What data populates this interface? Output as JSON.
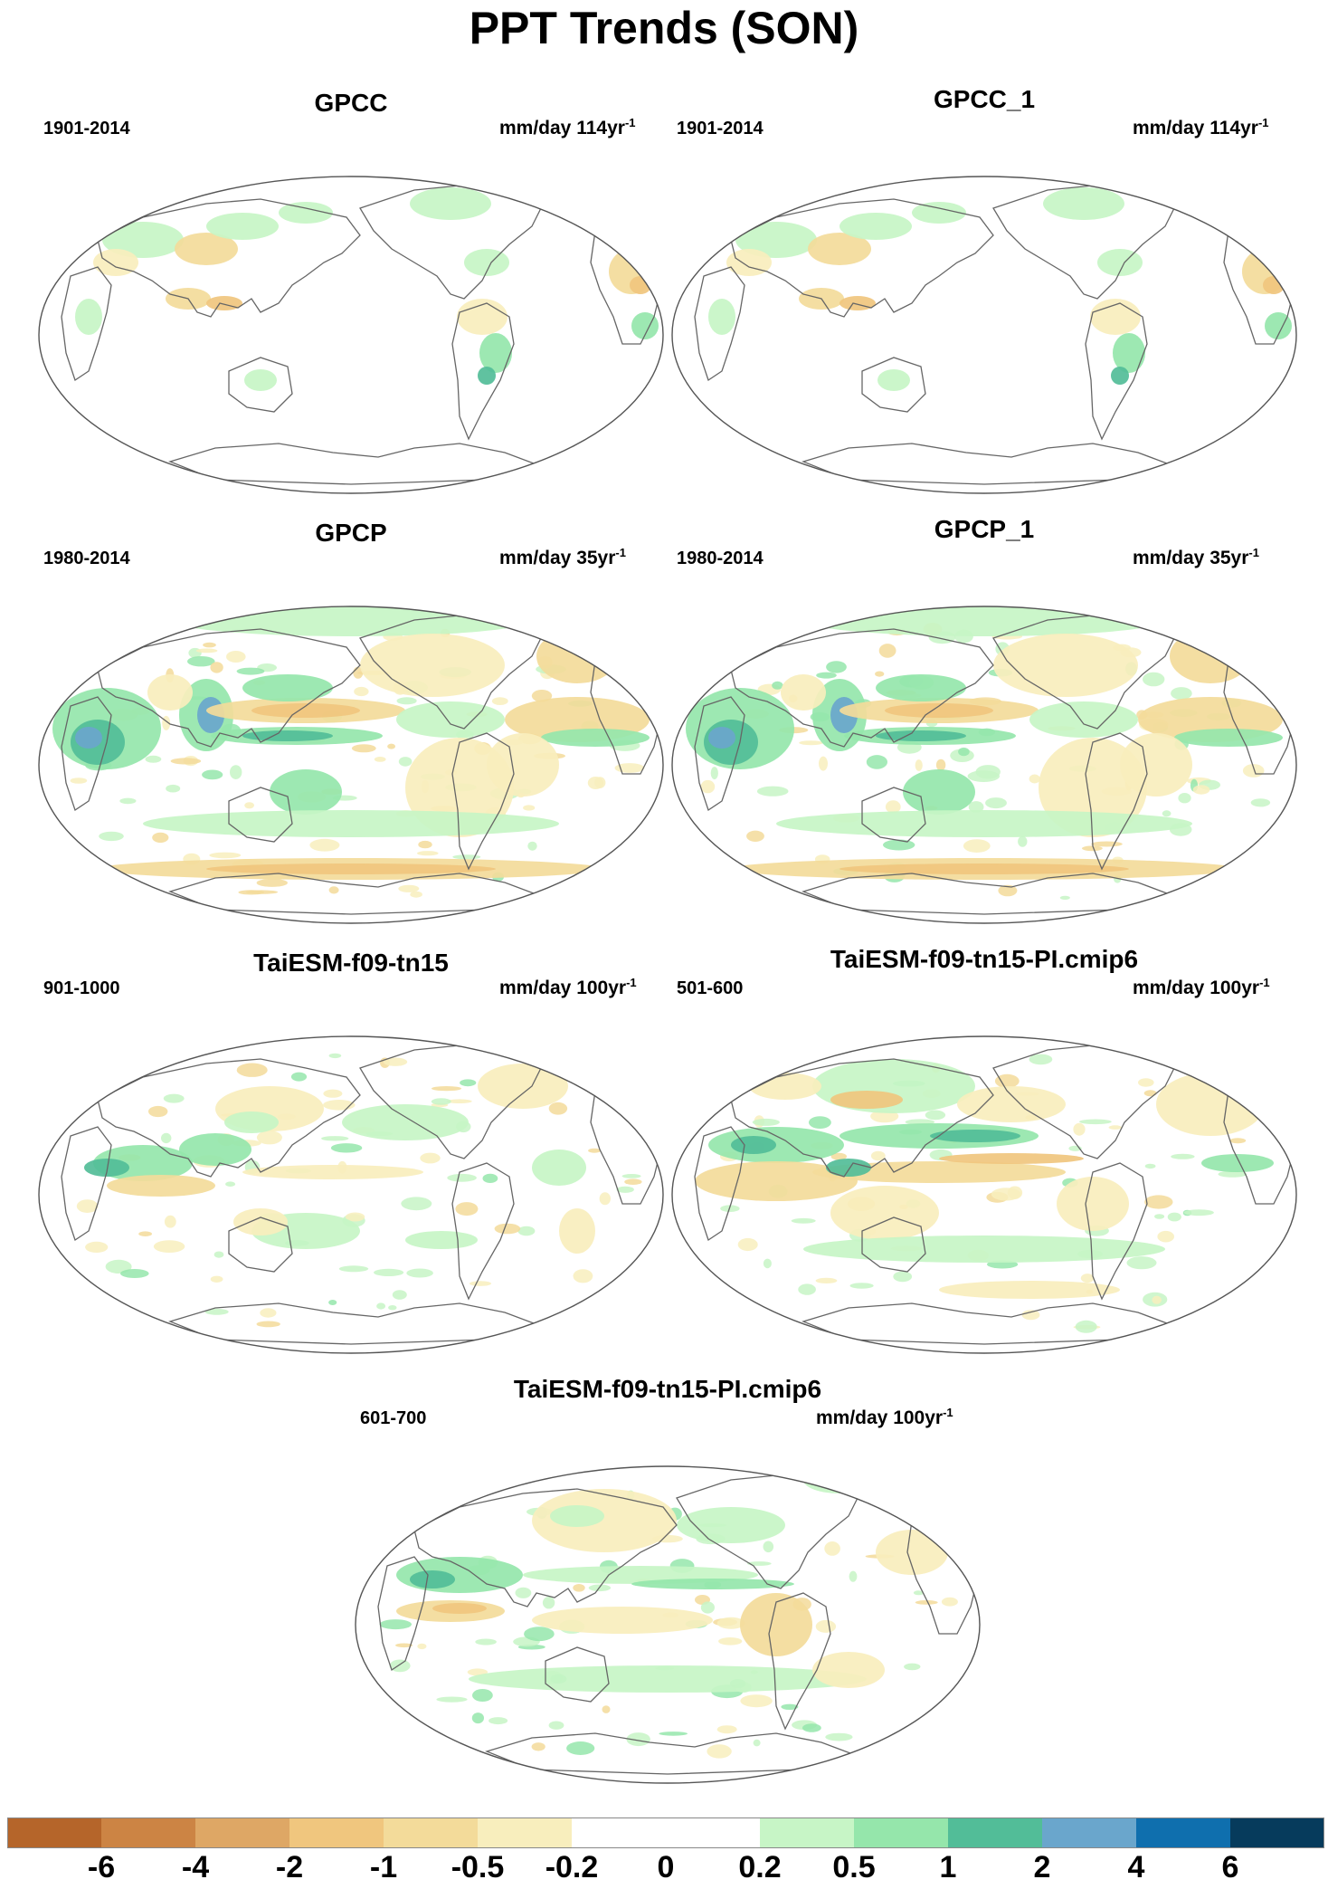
{
  "figure": {
    "title": "PPT Trends (SON)"
  },
  "panels": [
    {
      "title": "GPCC",
      "period": "1901-2014",
      "units": "mm/day 114yr",
      "units_exp": "-1",
      "pattern": "gpcc"
    },
    {
      "title": "GPCC_1",
      "period": "1901-2014",
      "units": "mm/day 114yr",
      "units_exp": "-1",
      "pattern": "gpcc"
    },
    {
      "title": "GPCP",
      "period": "1980-2014",
      "units": "mm/day 35yr",
      "units_exp": "-1",
      "pattern": "gpcp"
    },
    {
      "title": "GPCP_1",
      "period": "1980-2014",
      "units": "mm/day 35yr",
      "units_exp": "-1",
      "pattern": "gpcp"
    },
    {
      "title": "TaiESM-f09-tn15",
      "period": "901-1000",
      "units": "mm/day 100yr",
      "units_exp": "-1",
      "pattern": "model_a"
    },
    {
      "title": "TaiESM-f09-tn15-PI.cmip6",
      "period": "501-600",
      "units": "mm/day 100yr",
      "units_exp": "-1",
      "pattern": "model_b"
    },
    {
      "title": "TaiESM-f09-tn15-PI.cmip6",
      "period": "601-700",
      "units": "mm/day 100yr",
      "units_exp": "-1",
      "pattern": "model_c"
    }
  ],
  "colorbar": {
    "labels": [
      "-6",
      "-4",
      "-2",
      "-1",
      "-0.5",
      "-0.2",
      "0",
      "0.2",
      "0.5",
      "1",
      "2",
      "4",
      "6"
    ],
    "colors": [
      "#b5652a",
      "#cc8444",
      "#dea765",
      "#f0c67e",
      "#f3db9a",
      "#f8eebd",
      "#ffffff",
      "#ffffff",
      "#c7f5c6",
      "#95e6ab",
      "#52bd98",
      "#6aa6cc",
      "#0f6fae",
      "#063b5c"
    ]
  }
}
